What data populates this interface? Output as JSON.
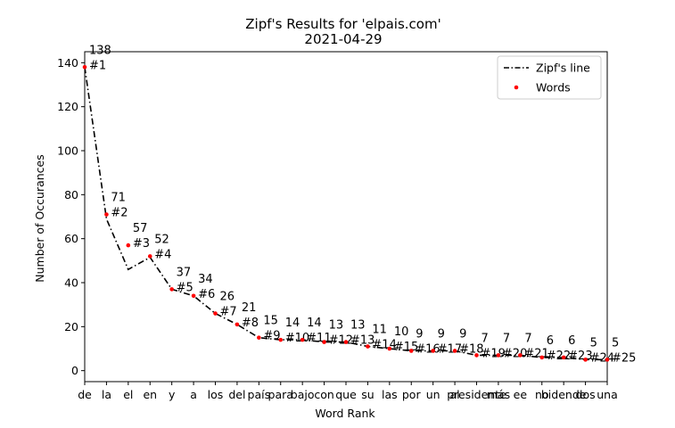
{
  "chart_data": {
    "type": "line",
    "title": "Zipf's Results for 'elpais.com'",
    "subtitle": "2021-04-29",
    "xlabel": "Word Rank",
    "ylabel": "Number of Occurances",
    "categories": [
      "de",
      "la",
      "el",
      "en",
      "y",
      "a",
      "los",
      "del",
      "país",
      "para",
      "bajo",
      "con",
      "que",
      "su",
      "las",
      "por",
      "un",
      "al",
      "presidente",
      "más",
      "ee",
      "no",
      "bidende",
      "dos",
      "una"
    ],
    "ranks": [
      "#1",
      "#2",
      "#3",
      "#4",
      "#5",
      "#6",
      "#7",
      "#8",
      "#9",
      "#10",
      "#11",
      "#12",
      "#13",
      "#14",
      "#15",
      "#16",
      "#17",
      "#18",
      "#19",
      "#20",
      "#21",
      "#22",
      "#23",
      "#24",
      "#25"
    ],
    "ylim": [
      -5,
      145
    ],
    "yticks": [
      0,
      20,
      40,
      60,
      80,
      100,
      120,
      140
    ],
    "grid": false,
    "legend_position": "upper right",
    "series": [
      {
        "name": "Zipf's line",
        "style": "dash-dot",
        "color": "#000000",
        "values": [
          138,
          69,
          46,
          51.5,
          37,
          34,
          26,
          21,
          15,
          14,
          14,
          13,
          13,
          11,
          10,
          9,
          9,
          9,
          7,
          7,
          7,
          6,
          6,
          5,
          5
        ]
      },
      {
        "name": "Words",
        "style": "scatter",
        "color": "#ff0000",
        "values": [
          138,
          71,
          57,
          52,
          37,
          34,
          26,
          21,
          15,
          14,
          14,
          13,
          13,
          11,
          10,
          9,
          9,
          9,
          7,
          7,
          7,
          6,
          6,
          5,
          5
        ]
      }
    ]
  }
}
